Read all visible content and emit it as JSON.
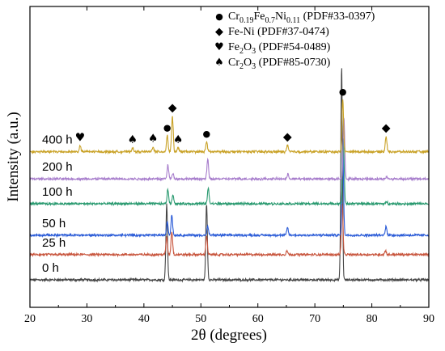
{
  "chart_data": {
    "type": "line",
    "xlabel": "2θ (degrees)",
    "ylabel": "Intensity (a.u.)",
    "xlim": [
      20,
      90
    ],
    "xticks": [
      20,
      30,
      40,
      50,
      60,
      70,
      80,
      90
    ],
    "y_tick_labels": "none",
    "grid": false,
    "legend_placement": "top-right",
    "legend": [
      {
        "symbol": "●",
        "icon": "circle-marker-icon",
        "formula": [
          [
            "Cr",
            false
          ],
          [
            "0.19",
            true
          ],
          [
            "Fe",
            false
          ],
          [
            "0.7",
            true
          ],
          [
            "Ni",
            false
          ],
          [
            "0.11",
            true
          ]
        ],
        "ref": " (PDF#33-0397)"
      },
      {
        "symbol": "◆",
        "icon": "diamond-marker-icon",
        "formula": [
          [
            "Fe-Ni",
            false
          ]
        ],
        "ref": " (PDF#37-0474)"
      },
      {
        "symbol": "♥",
        "icon": "heart-marker-icon",
        "formula": [
          [
            "Fe",
            false
          ],
          [
            "2",
            true
          ],
          [
            "O",
            false
          ],
          [
            "3",
            true
          ]
        ],
        "ref": " (PDF#54-0489)"
      },
      {
        "symbol": "♠",
        "icon": "spade-marker-icon",
        "formula": [
          [
            "Cr",
            false
          ],
          [
            "2",
            true
          ],
          [
            "O",
            false
          ],
          [
            "3",
            true
          ]
        ],
        "ref": " (PDF#85-0730)"
      }
    ],
    "series": [
      {
        "name": "0 h",
        "color": "#454545",
        "baseline": 0.0,
        "peaks": [
          {
            "x": 44.0,
            "h": 1.95
          },
          {
            "x": 51.0,
            "h": 1.95
          },
          {
            "x": 74.7,
            "h": 5.5
          }
        ]
      },
      {
        "name": "25 h",
        "color": "#c8553d",
        "baseline": 0.65,
        "peaks": [
          {
            "x": 44.0,
            "h": 0.45
          },
          {
            "x": 44.9,
            "h": 0.6
          },
          {
            "x": 51.0,
            "h": 0.48
          },
          {
            "x": 65.1,
            "h": 0.1
          },
          {
            "x": 74.8,
            "h": 1.3
          },
          {
            "x": 82.4,
            "h": 0.1
          }
        ]
      },
      {
        "name": "50 h",
        "color": "#2a5bd7",
        "baseline": 1.15,
        "peaks": [
          {
            "x": 44.1,
            "h": 0.36
          },
          {
            "x": 44.9,
            "h": 0.52
          },
          {
            "x": 51.2,
            "h": 0.22
          },
          {
            "x": 65.2,
            "h": 0.2
          },
          {
            "x": 74.9,
            "h": 2.15
          },
          {
            "x": 82.5,
            "h": 0.24
          }
        ]
      },
      {
        "name": "100 h",
        "color": "#2a9a70",
        "baseline": 1.96,
        "peaks": [
          {
            "x": 44.2,
            "h": 0.37
          },
          {
            "x": 45.1,
            "h": 0.24
          },
          {
            "x": 51.3,
            "h": 0.4
          },
          {
            "x": 75.0,
            "h": 1.7
          },
          {
            "x": 82.6,
            "h": 0.05
          }
        ]
      },
      {
        "name": "200 h",
        "color": "#a77dcc",
        "baseline": 2.6,
        "peaks": [
          {
            "x": 44.2,
            "h": 0.36
          },
          {
            "x": 45.1,
            "h": 0.15
          },
          {
            "x": 51.2,
            "h": 0.5
          },
          {
            "x": 65.3,
            "h": 0.12
          },
          {
            "x": 75.1,
            "h": 1.6
          },
          {
            "x": 82.6,
            "h": 0.05
          }
        ]
      },
      {
        "name": "400 h",
        "color": "#c9a227",
        "baseline": 3.3,
        "peaks": [
          {
            "x": 28.8,
            "h": 0.15
          },
          {
            "x": 38.0,
            "h": 0.1
          },
          {
            "x": 41.6,
            "h": 0.13
          },
          {
            "x": 44.1,
            "h": 0.42
          },
          {
            "x": 45.0,
            "h": 0.92
          },
          {
            "x": 46.0,
            "h": 0.1
          },
          {
            "x": 51.0,
            "h": 0.26
          },
          {
            "x": 65.2,
            "h": 0.17
          },
          {
            "x": 74.9,
            "h": 1.35
          },
          {
            "x": 82.5,
            "h": 0.4
          }
        ]
      }
    ],
    "peak_markers": [
      {
        "symbol": "♥",
        "x": 28.8,
        "series": "400 h"
      },
      {
        "symbol": "♠",
        "x": 38.0,
        "series": "400 h"
      },
      {
        "symbol": "♠",
        "x": 41.6,
        "series": "400 h"
      },
      {
        "symbol": "●",
        "x": 44.1,
        "series": "400 h"
      },
      {
        "symbol": "◆",
        "x": 45.0,
        "series": "400 h"
      },
      {
        "symbol": "♠",
        "x": 46.0,
        "series": "400 h"
      },
      {
        "symbol": "●",
        "x": 51.0,
        "series": "400 h"
      },
      {
        "symbol": "◆",
        "x": 65.2,
        "series": "400 h"
      },
      {
        "symbol": "●",
        "x": 74.9,
        "series": "400 h"
      },
      {
        "symbol": "◆",
        "x": 82.5,
        "series": "400 h"
      }
    ]
  }
}
